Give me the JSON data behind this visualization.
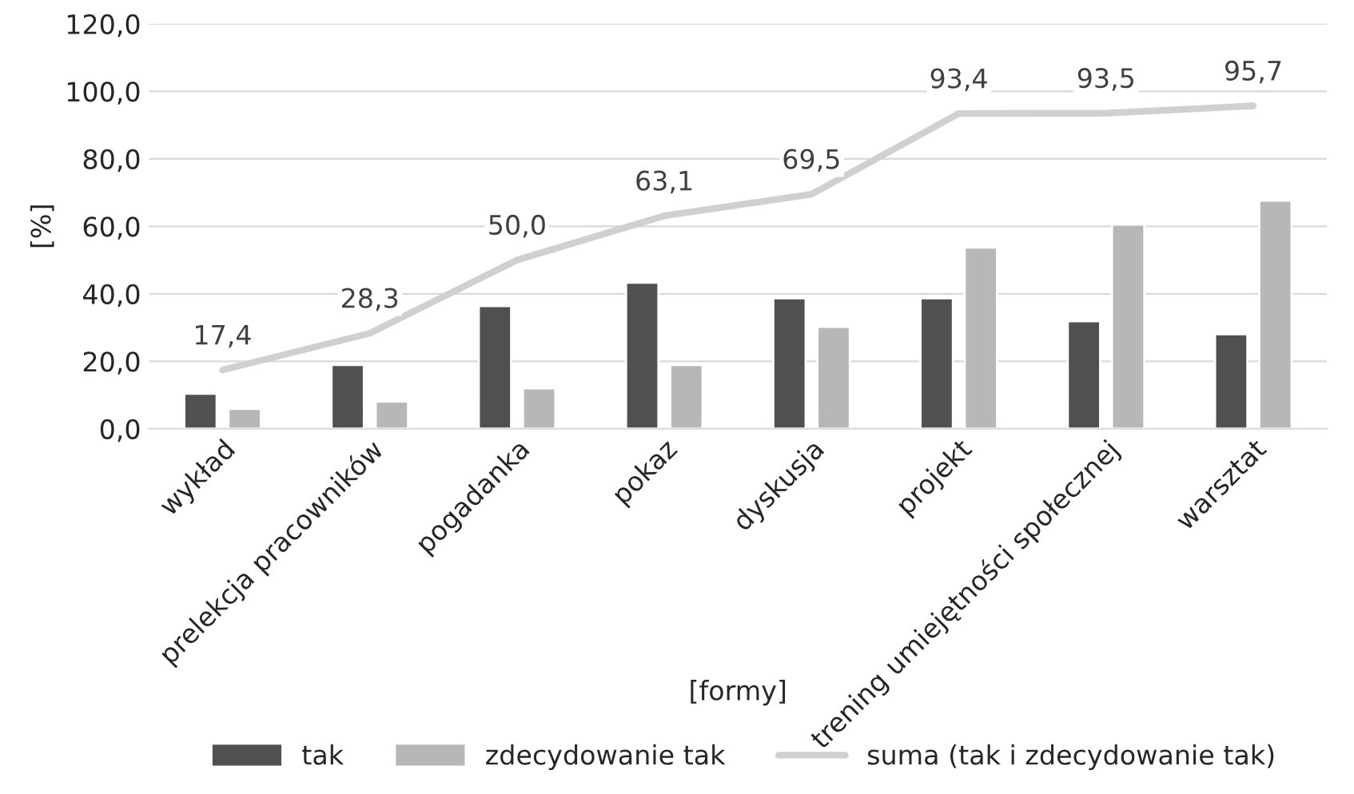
{
  "chart_data": {
    "type": "bar",
    "xlabel": "[formy]",
    "ylabel": "[%]",
    "categories": [
      "wykład",
      "prelekcja pracowników",
      "pogadanka",
      "pokaz",
      "dyskusja",
      "projekt",
      "trening umiejętności społecznej",
      "warsztat"
    ],
    "series": [
      {
        "name": "tak",
        "color": "#505050",
        "values": [
          10.4,
          18.9,
          36.4,
          43.3,
          38.7,
          38.7,
          31.9,
          28.0
        ]
      },
      {
        "name": "zdecydowanie tak",
        "color": "#b7b7b7",
        "values": [
          5.9,
          8.1,
          12.0,
          18.9,
          30.2,
          53.7,
          60.5,
          67.6
        ]
      },
      {
        "name": "suma (tak i zdecydowanie tak)",
        "type": "line",
        "color": "#d0d0d0",
        "values": [
          17.4,
          28.3,
          50.0,
          63.1,
          69.5,
          93.4,
          93.5,
          95.7
        ],
        "value_labels": [
          "17,4",
          "28,3",
          "50,0",
          "63,1",
          "69,5",
          "93,4",
          "93,5",
          "95,7"
        ]
      }
    ],
    "ylim": [
      0,
      120
    ],
    "yticks": [
      {
        "value": 0,
        "label": "0,0"
      },
      {
        "value": 20,
        "label": "20,0"
      },
      {
        "value": 40,
        "label": "40,0"
      },
      {
        "value": 60,
        "label": "60,0"
      },
      {
        "value": 80,
        "label": "80,0"
      },
      {
        "value": 100,
        "label": "100,0"
      },
      {
        "value": 120,
        "label": "120,0"
      }
    ],
    "grid": "y",
    "legend": "bottom",
    "marker": "none"
  }
}
